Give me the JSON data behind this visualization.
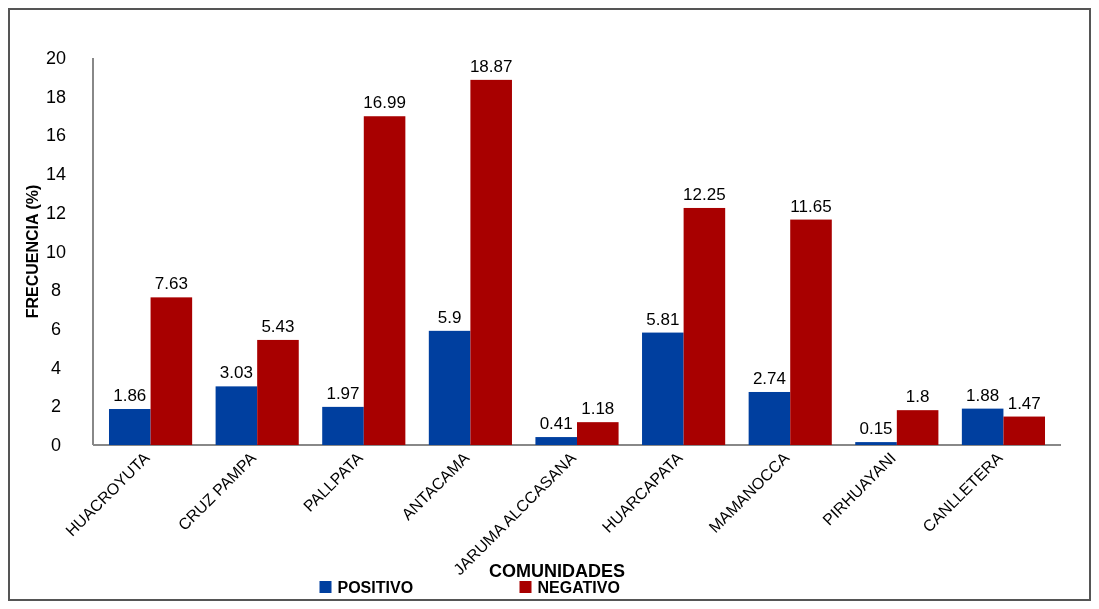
{
  "chart_data": {
    "type": "bar",
    "xlabel": "COMUNIDADES",
    "ylabel": "FRECUENCIA (%)",
    "categories": [
      "HUACROYUTA",
      "CRUZ PAMPA",
      "PALLPATA",
      "ANTACAMA",
      "JARUMA ALCCASANA",
      "HUARCAPATA",
      "MAMANOCCA",
      "PIRHUAYANI",
      "CANLLETERA"
    ],
    "series": [
      {
        "name": "POSITIVO",
        "color": "#003f9f",
        "values": [
          1.86,
          3.03,
          1.97,
          5.9,
          0.41,
          5.81,
          2.74,
          0.15,
          1.88
        ]
      },
      {
        "name": "NEGATIVO",
        "color": "#a80000",
        "values": [
          7.63,
          5.43,
          16.99,
          18.87,
          1.18,
          12.25,
          11.65,
          1.8,
          1.47
        ]
      }
    ],
    "ylim": [
      0,
      20
    ],
    "yticks": [
      0,
      2,
      4,
      6,
      8,
      10,
      12,
      14,
      16,
      18,
      20
    ],
    "data_labels": true,
    "legend": "bottom",
    "grid": false
  }
}
